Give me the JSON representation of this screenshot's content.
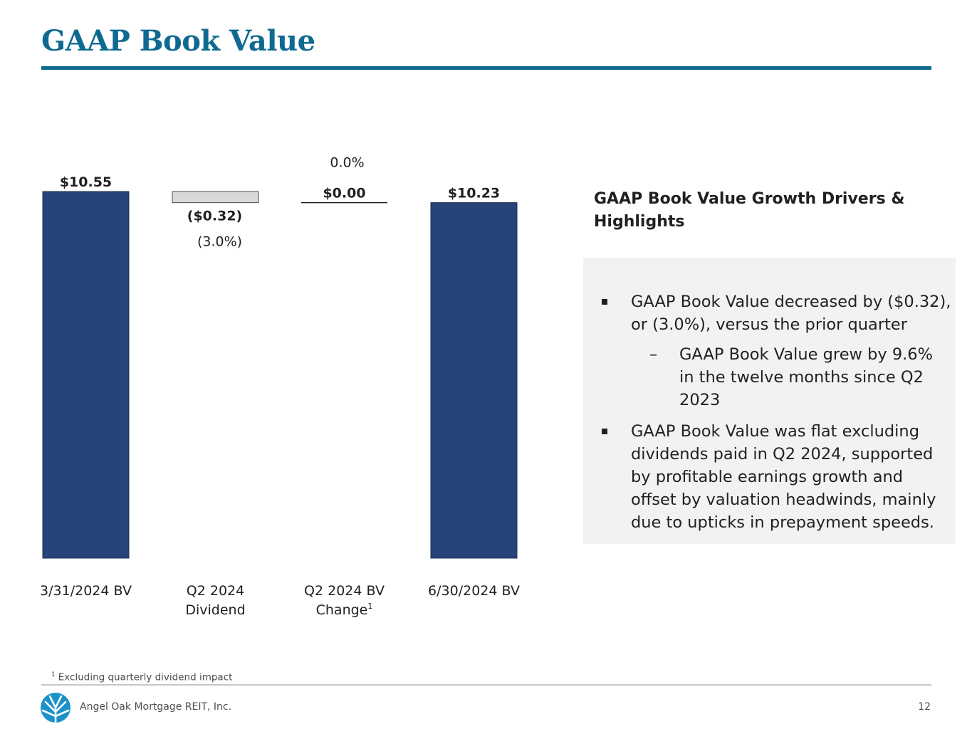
{
  "slide": {
    "title": "GAAP Book Value",
    "footnote_marker": "1",
    "footnote": "Excluding quarterly dividend impact",
    "company": "Angel Oak Mortgage REIT, Inc.",
    "page_number": "12"
  },
  "panel": {
    "heading": "GAAP Book Value Growth Drivers & Highlights",
    "bullets": [
      {
        "text": "GAAP Book Value decreased by ($0.32), or (3.0%), versus the prior quarter",
        "sub": [
          "GAAP Book Value grew by 9.6% in the twelve months since Q2 2023"
        ]
      },
      {
        "text": "GAAP Book Value was flat excluding dividends paid in Q2 2024, supported by profitable earnings growth and offset by valuation headwinds, mainly due to upticks in prepayment speeds.",
        "sub": []
      }
    ]
  },
  "chart_data": {
    "type": "bar",
    "subtype": "waterfall",
    "categories": [
      {
        "lines": [
          "3/31/2024 BV"
        ],
        "superscript": ""
      },
      {
        "lines": [
          "Q2 2024",
          "Dividend"
        ],
        "superscript": ""
      },
      {
        "lines": [
          "Q2 2024 BV",
          "Change"
        ],
        "superscript": "1"
      },
      {
        "lines": [
          "6/30/2024 BV"
        ],
        "superscript": ""
      }
    ],
    "steps": [
      {
        "kind": "total",
        "value": 10.55,
        "label": "$10.55",
        "pct": ""
      },
      {
        "kind": "delta",
        "value": -0.32,
        "label": "($0.32)",
        "pct": "(3.0%)"
      },
      {
        "kind": "delta",
        "value": 0.0,
        "label": "$0.00",
        "pct": "0.0%"
      },
      {
        "kind": "total",
        "value": 10.23,
        "label": "$10.23",
        "pct": ""
      }
    ],
    "colors": {
      "total": "#27447a",
      "decrease": "#d9d9d9",
      "outline": "#4a4a4a"
    },
    "ylim": [
      0,
      10.55
    ],
    "grid": false,
    "legend": "none"
  }
}
